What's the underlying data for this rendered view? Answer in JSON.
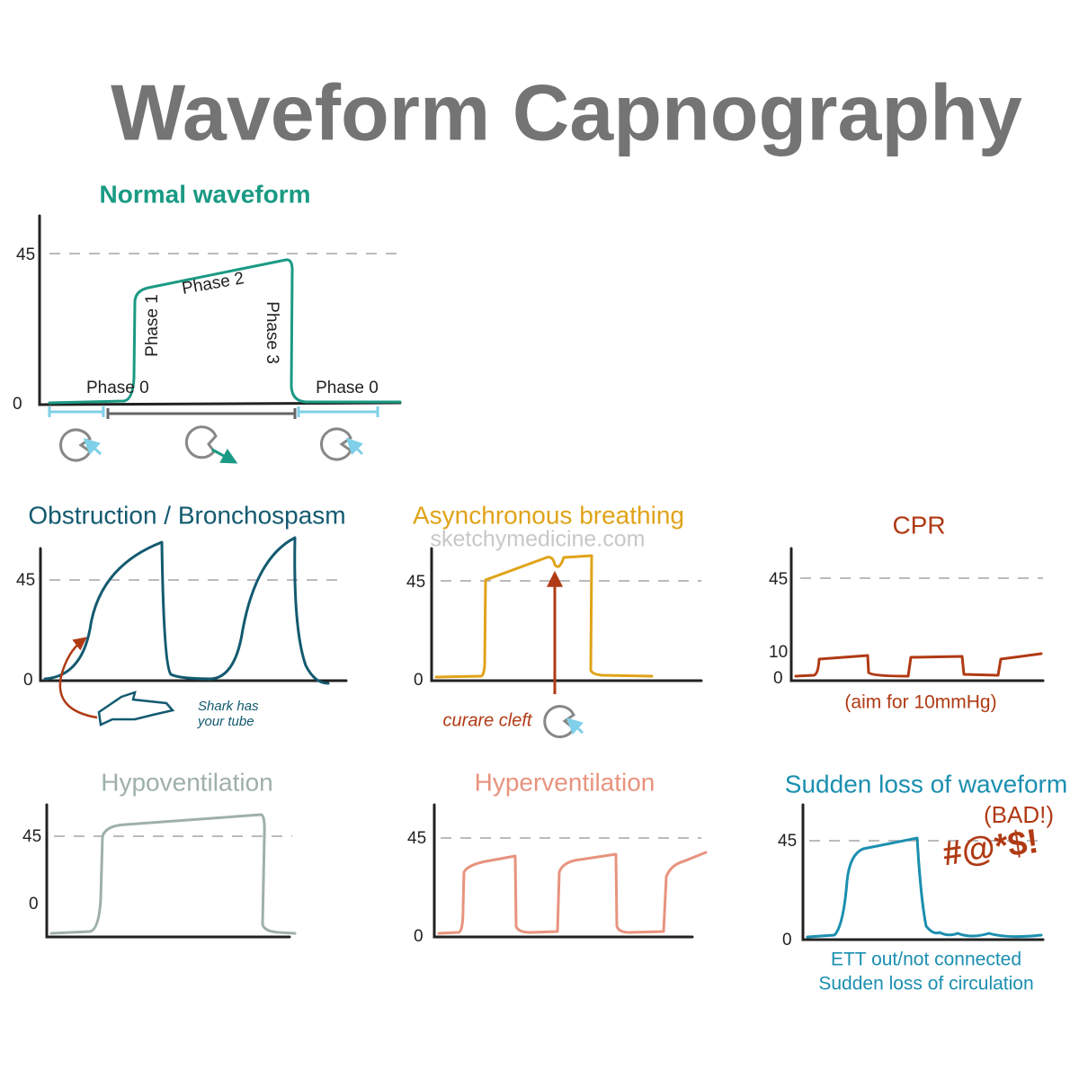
{
  "title": "Waveform Capnography",
  "watermark": "sketchymedicine.com",
  "panels": [
    {
      "title": "Normal waveform",
      "y_labels": [
        "45",
        "0"
      ],
      "labels": [
        "Phase 0",
        "Phase 1",
        "Phase 2",
        "Phase 3",
        "Phase 0"
      ]
    },
    {
      "title": "Obstruction / Bronchospasm",
      "y_labels": [
        "45",
        "0"
      ],
      "annotation": [
        "Shark has",
        "your tube"
      ]
    },
    {
      "title": "Asynchronous breathing",
      "y_labels": [
        "45",
        "0"
      ],
      "annotation": "curare cleft"
    },
    {
      "title": "CPR",
      "y_labels": [
        "45",
        "10",
        "0"
      ],
      "annotation": "(aim for 10mmHg)"
    },
    {
      "title": "Hypoventilation",
      "y_labels": [
        "45",
        "0"
      ]
    },
    {
      "title": "Hyperventilation",
      "y_labels": [
        "45",
        "0"
      ]
    },
    {
      "title": "Sudden loss of waveform",
      "subtitle": "(BAD!)",
      "y_labels": [
        "45",
        "0"
      ],
      "annotation": "#@*$!",
      "notes": [
        "ETT out/not connected",
        "Sudden loss of circulation"
      ]
    }
  ]
}
